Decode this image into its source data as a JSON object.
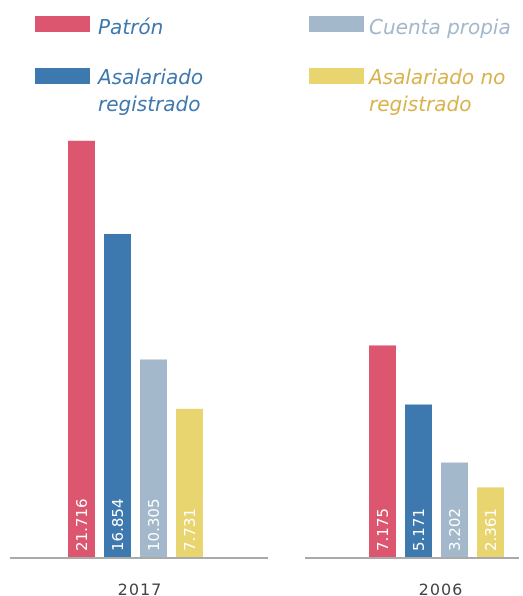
{
  "legend": [
    {
      "name": "Patrón",
      "color": "#dc5670",
      "text_color": "#3d78ae"
    },
    {
      "name": "Cuenta propia",
      "color": "#a3b8cb",
      "text_color": "#a3b8cb"
    },
    {
      "name": "Asalariado registrado",
      "color": "#3d78ae",
      "text_color": "#3d78ae"
    },
    {
      "name": "Asalariado no registrado",
      "color": "#e9d56f",
      "text_color": "#d9b24c"
    }
  ],
  "chart_data": [
    {
      "type": "bar",
      "xlabel": "2017",
      "values": [
        21716,
        10305,
        16854,
        7731
      ],
      "value_labels": [
        "21.716",
        "10.305",
        "16.854",
        "7.731"
      ],
      "ylim": [
        0,
        24000
      ]
    },
    {
      "type": "bar",
      "xlabel": "2006",
      "values": [
        7175,
        3202,
        5171,
        2361
      ],
      "value_labels": [
        "7.175",
        "3.202",
        "5.171",
        "2.361"
      ],
      "ylim": [
        0,
        15600
      ]
    }
  ]
}
